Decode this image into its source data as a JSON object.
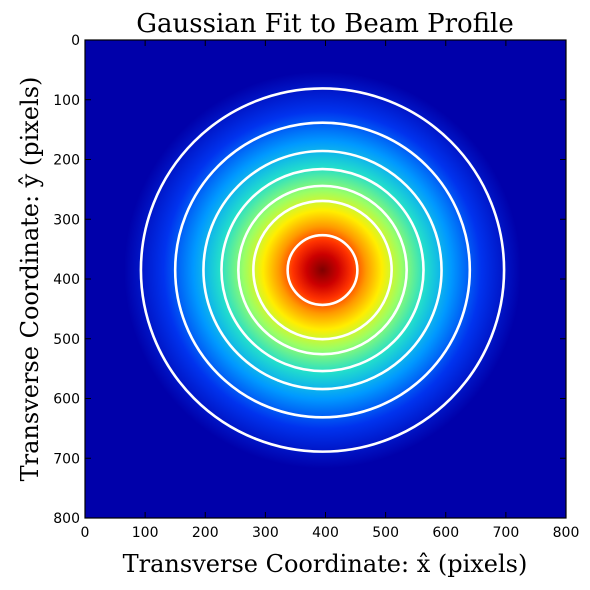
{
  "chart_data": {
    "type": "heatmap",
    "title": "Gaussian Fit to Beam Profile",
    "xlabel": "Transverse Coordinate: x̂ (pixels)",
    "ylabel": "Transverse Coordinate: ŷ (pixels)",
    "xlim": [
      0,
      800
    ],
    "ylim": [
      800,
      0
    ],
    "x_ticks": [
      0,
      100,
      200,
      300,
      400,
      500,
      600,
      700,
      800
    ],
    "y_ticks": [
      0,
      100,
      200,
      300,
      400,
      500,
      600,
      700,
      800
    ],
    "colormap": "jet",
    "grid": false,
    "beam_center": {
      "x": 395,
      "y": 385
    },
    "contour_color": "#ffffff",
    "contour_radii": [
      58,
      115,
      140,
      168,
      198,
      245,
      302
    ]
  }
}
